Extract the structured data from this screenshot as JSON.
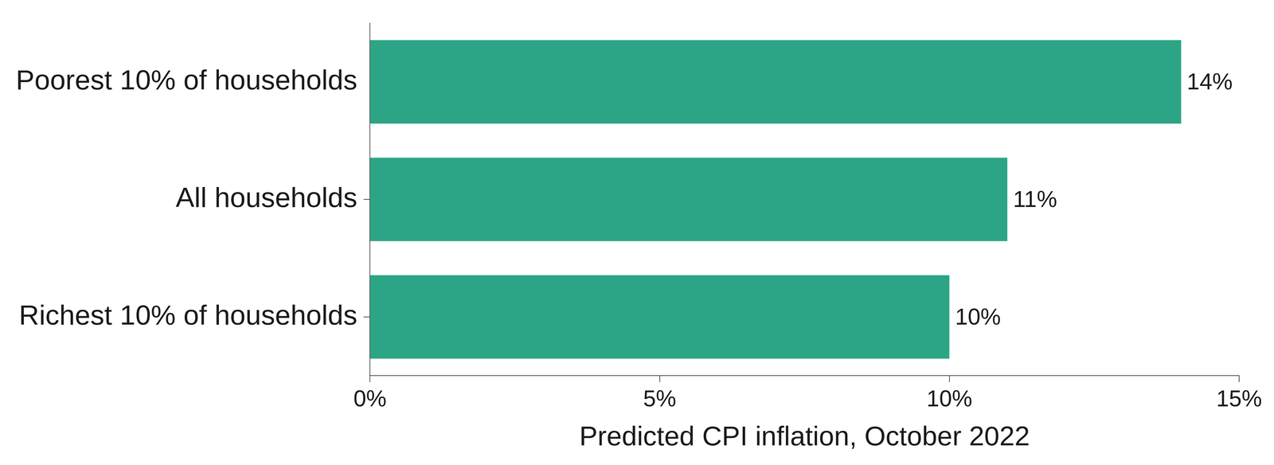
{
  "chart_data": {
    "type": "bar",
    "orientation": "horizontal",
    "categories": [
      "Poorest 10% of households",
      "All households",
      "Richest 10% of households"
    ],
    "values": [
      14,
      11,
      10
    ],
    "value_labels": [
      "14%",
      "11%",
      "10%"
    ],
    "data_labels": true,
    "color": "#2ca586",
    "x_label": "Predicted CPI inflation, October 2022",
    "xlim": [
      0,
      15
    ],
    "xticks": [
      {
        "value": 0,
        "label": "0%"
      },
      {
        "value": 5,
        "label": "5%"
      },
      {
        "value": 10,
        "label": "10%"
      },
      {
        "value": 15,
        "label": "15%"
      }
    ],
    "grid": false
  }
}
